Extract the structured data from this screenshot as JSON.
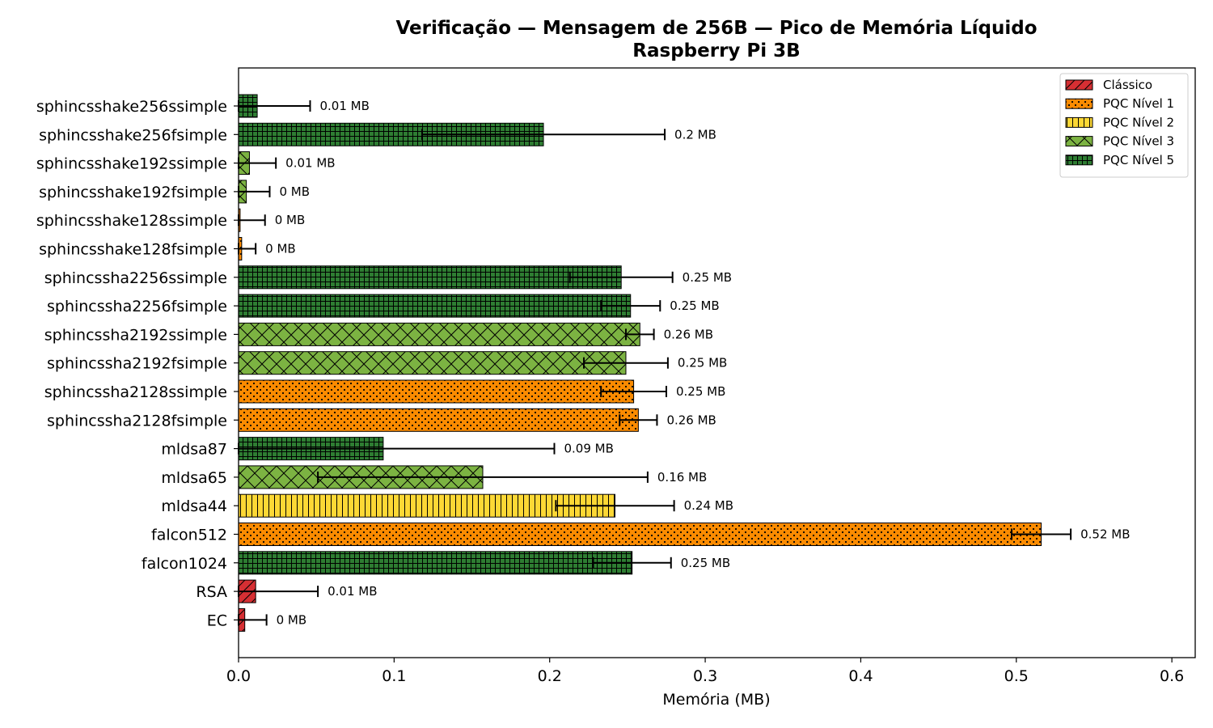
{
  "chart_data": {
    "type": "bar",
    "orientation": "horizontal",
    "title": "Verificação — Mensagem de 256B — Pico de Memória Líquido",
    "subtitle": "Raspberry Pi 3B",
    "xlabel": "Memória (MB)",
    "ylabel": "",
    "xlim": [
      0,
      0.615
    ],
    "xticks": [
      0.0,
      0.1,
      0.2,
      0.3,
      0.4,
      0.5,
      0.6
    ],
    "xtick_labels": [
      "0.0",
      "0.1",
      "0.2",
      "0.3",
      "0.4",
      "0.5",
      "0.6"
    ],
    "grid": false,
    "legend_position": "top-right",
    "legend": [
      {
        "label": "Clássico",
        "color": "#d62f33",
        "pattern": "hatch-diagonal"
      },
      {
        "label": "PQC Nível 1",
        "color": "#fb8b00",
        "pattern": "dots"
      },
      {
        "label": "PQC Nível 2",
        "color": "#fdd835",
        "pattern": "vertical-lines"
      },
      {
        "label": "PQC Nível 3",
        "color": "#7cb342",
        "pattern": "crosshatch"
      },
      {
        "label": "PQC Nível 5",
        "color": "#2e7d32",
        "pattern": "grid"
      }
    ],
    "bars": [
      {
        "category": "sphincsshake256ssimple",
        "value": 0.012,
        "error": 0.034,
        "label": "0.01 MB",
        "level": 4
      },
      {
        "category": "sphincsshake256fsimple",
        "value": 0.196,
        "error": 0.078,
        "label": "0.2 MB",
        "level": 4
      },
      {
        "category": "sphincsshake192ssimple",
        "value": 0.007,
        "error": 0.017,
        "label": "0.01 MB",
        "level": 3
      },
      {
        "category": "sphincsshake192fsimple",
        "value": 0.005,
        "error": 0.015,
        "label": "0 MB",
        "level": 3
      },
      {
        "category": "sphincsshake128ssimple",
        "value": 0.001,
        "error": 0.016,
        "label": "0 MB",
        "level": 1
      },
      {
        "category": "sphincsshake128fsimple",
        "value": 0.002,
        "error": 0.009,
        "label": "0 MB",
        "level": 1
      },
      {
        "category": "sphincssha2256ssimple",
        "value": 0.246,
        "error": 0.033,
        "label": "0.25 MB",
        "level": 4
      },
      {
        "category": "sphincssha2256fsimple",
        "value": 0.252,
        "error": 0.019,
        "label": "0.25 MB",
        "level": 4
      },
      {
        "category": "sphincssha2192ssimple",
        "value": 0.258,
        "error": 0.009,
        "label": "0.26 MB",
        "level": 3
      },
      {
        "category": "sphincssha2192fsimple",
        "value": 0.249,
        "error": 0.027,
        "label": "0.25 MB",
        "level": 3
      },
      {
        "category": "sphincssha2128ssimple",
        "value": 0.254,
        "error": 0.021,
        "label": "0.25 MB",
        "level": 1
      },
      {
        "category": "sphincssha2128fsimple",
        "value": 0.257,
        "error": 0.012,
        "label": "0.26 MB",
        "level": 1
      },
      {
        "category": "mldsa87",
        "value": 0.093,
        "error": 0.11,
        "label": "0.09 MB",
        "level": 4
      },
      {
        "category": "mldsa65",
        "value": 0.157,
        "error": 0.106,
        "label": "0.16 MB",
        "level": 3
      },
      {
        "category": "mldsa44",
        "value": 0.242,
        "error": 0.038,
        "label": "0.24 MB",
        "level": 2
      },
      {
        "category": "falcon512",
        "value": 0.516,
        "error": 0.019,
        "label": "0.52 MB",
        "level": 1
      },
      {
        "category": "falcon1024",
        "value": 0.253,
        "error": 0.025,
        "label": "0.25 MB",
        "level": 4
      },
      {
        "category": "RSA",
        "value": 0.011,
        "error": 0.04,
        "label": "0.01 MB",
        "level": 0
      },
      {
        "category": "EC",
        "value": 0.004,
        "error": 0.014,
        "label": "0 MB",
        "level": 0
      }
    ]
  }
}
